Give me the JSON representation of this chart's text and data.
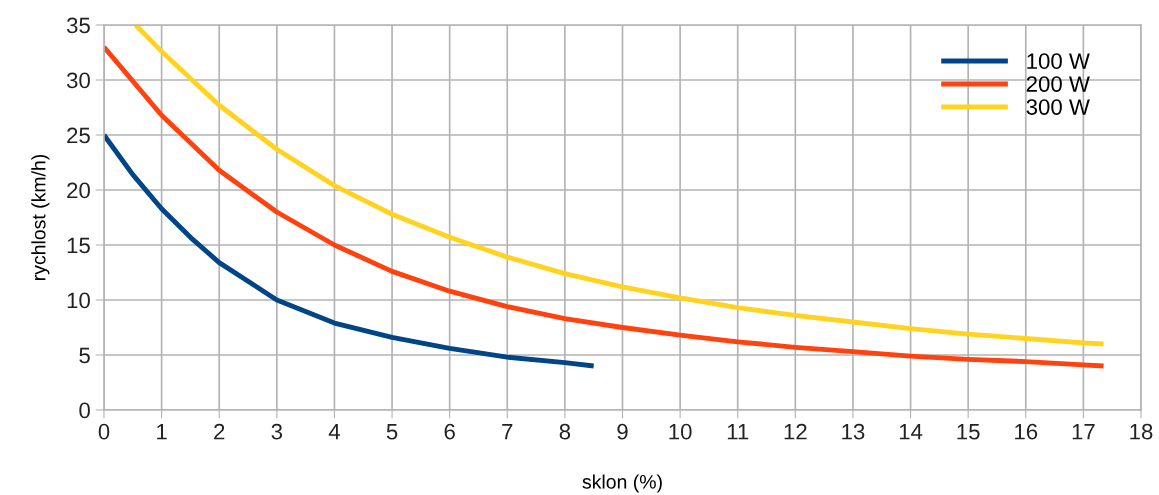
{
  "chart_data": {
    "type": "line",
    "xlabel": "sklon (%)",
    "ylabel": "rychlost (km/h)",
    "xlim": [
      0,
      18
    ],
    "xticks": [
      0,
      1,
      2,
      3,
      4,
      5,
      6,
      7,
      8,
      9,
      10,
      11,
      12,
      13,
      14,
      15,
      16,
      17,
      18
    ],
    "ylim": [
      0,
      35
    ],
    "yticks": [
      0,
      5,
      10,
      15,
      20,
      25,
      30,
      35
    ],
    "grid": true,
    "legend": "top right",
    "marker": "none",
    "line_style": "solid",
    "series": [
      {
        "name": "100 W",
        "color": "#004586",
        "x": [
          0,
          0.5,
          1,
          1.5,
          2,
          3,
          4,
          5,
          6,
          7,
          8,
          8.5
        ],
        "values": [
          25,
          21.4,
          18.3,
          15.7,
          13.4,
          10.0,
          7.9,
          6.6,
          5.6,
          4.8,
          4.3,
          4.0
        ]
      },
      {
        "name": "200 W",
        "color": "#ff420e",
        "x": [
          0,
          1,
          2,
          3,
          4,
          5,
          6,
          7,
          8,
          9,
          10,
          11,
          12,
          13,
          14,
          15,
          16,
          17,
          17.35
        ],
        "values": [
          33,
          26.8,
          21.8,
          18.0,
          15.0,
          12.6,
          10.8,
          9.4,
          8.3,
          7.5,
          6.8,
          6.2,
          5.7,
          5.3,
          4.9,
          4.6,
          4.4,
          4.1,
          4.0
        ]
      },
      {
        "name": "300 W",
        "color": "#ffd320",
        "x": [
          0.55,
          1,
          2,
          3,
          4,
          5,
          6,
          7,
          8,
          9,
          10,
          11,
          12,
          13,
          14,
          15,
          16,
          17,
          17.35
        ],
        "values": [
          35,
          32.6,
          27.7,
          23.7,
          20.4,
          17.8,
          15.7,
          13.9,
          12.4,
          11.2,
          10.2,
          9.3,
          8.6,
          8.0,
          7.4,
          6.9,
          6.5,
          6.1,
          6.0
        ]
      }
    ]
  }
}
